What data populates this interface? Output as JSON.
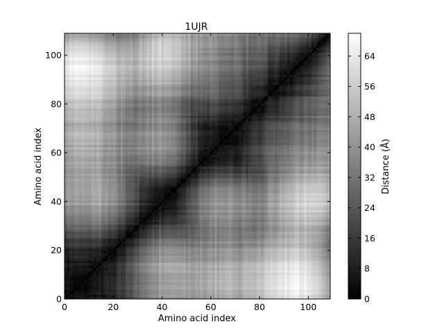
{
  "chart_data": {
    "type": "heatmap",
    "title": "1UJR",
    "xlabel": "Amino acid index",
    "ylabel": "Amino acid index",
    "xlim": [
      0,
      109
    ],
    "ylim": [
      0,
      109
    ],
    "x_ticks": [
      0,
      20,
      40,
      60,
      80,
      100
    ],
    "y_ticks": [
      0,
      20,
      40,
      60,
      80,
      100
    ],
    "colormap": "gray",
    "colorbar": {
      "label": "Distance (Å)",
      "range": [
        0,
        70
      ],
      "ticks": [
        0,
        8,
        16,
        24,
        32,
        40,
        48,
        56,
        64
      ]
    },
    "description_values": {
      "diagonal_distance": 0,
      "max_distance_approx": 70
    }
  },
  "colors": {
    "background": "#ffffff",
    "axis": "#000000",
    "low": "#000000",
    "high": "#ffffff"
  }
}
